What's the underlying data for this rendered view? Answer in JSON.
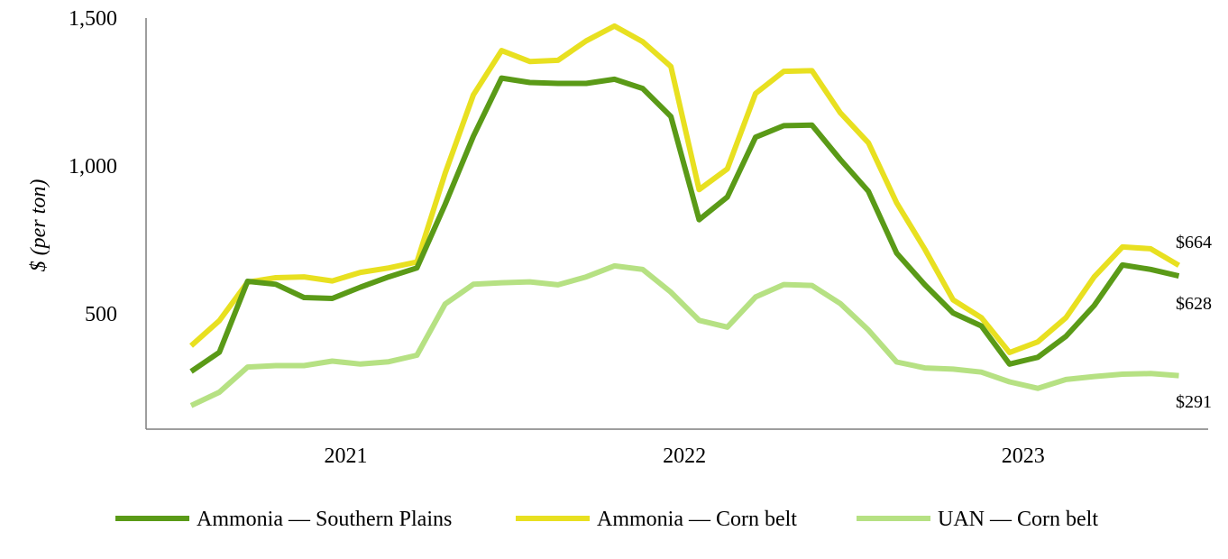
{
  "chart_data": {
    "type": "line",
    "ylabel": "$ (per ton)",
    "ylim": [
      110,
      1500
    ],
    "yticks": [
      {
        "value": 500,
        "label": "500"
      },
      {
        "value": 1000,
        "label": "1,000"
      },
      {
        "value": 1500,
        "label": "1,500"
      }
    ],
    "xticks": [
      {
        "value": 6,
        "label": "2021"
      },
      {
        "value": 18,
        "label": "2022"
      },
      {
        "value": 30,
        "label": "2023"
      }
    ],
    "x": [
      1,
      2,
      3,
      4,
      5,
      6,
      7,
      8,
      9,
      10,
      11,
      12,
      13,
      14,
      15,
      16,
      17,
      18,
      19,
      20,
      21,
      22,
      23,
      24,
      25,
      26,
      27,
      28,
      29,
      30,
      31,
      32,
      33,
      34,
      35,
      36
    ],
    "series": [
      {
        "name": "Ammonia — Southern Plains",
        "color": "#5a9a17",
        "values": [
          305,
          370,
          610,
          600,
          555,
          552,
          590,
          625,
          655,
          870,
          1100,
          1297,
          1282,
          1279,
          1279,
          1293,
          1262,
          1167,
          818,
          895,
          1097,
          1136,
          1138,
          1022,
          914,
          705,
          598,
          503,
          459,
          330,
          353,
          424,
          528,
          665,
          650,
          628
        ],
        "end_label": "$628"
      },
      {
        "name": "Ammonia — Corn belt",
        "color": "#e8e020",
        "values": [
          392,
          477,
          607,
          622,
          625,
          611,
          640,
          655,
          675,
          975,
          1240,
          1390,
          1353,
          1357,
          1423,
          1473,
          1420,
          1336,
          920,
          990,
          1245,
          1320,
          1322,
          1180,
          1078,
          875,
          718,
          547,
          487,
          369,
          405,
          487,
          625,
          726,
          720,
          664
        ],
        "end_label": "$664"
      },
      {
        "name": "UAN — Corn belt",
        "color": "#b6e183",
        "values": [
          190,
          235,
          320,
          325,
          325,
          340,
          330,
          338,
          360,
          533,
          600,
          605,
          608,
          598,
          625,
          662,
          650,
          573,
          478,
          455,
          557,
          599,
          596,
          535,
          445,
          337,
          317,
          313,
          303,
          270,
          248,
          278,
          288,
          296,
          298,
          291
        ],
        "end_label": "$291"
      }
    ],
    "legend_position": "bottom"
  }
}
